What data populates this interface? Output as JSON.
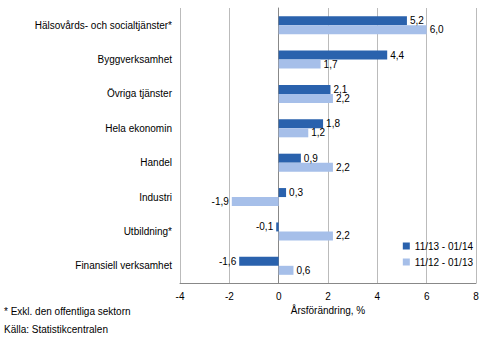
{
  "chart_data": {
    "type": "bar",
    "orientation": "horizontal",
    "categories": [
      "Hälsovårds- och socialtjänster*",
      "Byggverksamhet",
      "Övriga tjänster",
      "Hela ekonomin",
      "Handel",
      "Industri",
      "Utbildning*",
      "Finansiell verksamhet"
    ],
    "series": [
      {
        "name": "11/13 - 01/14",
        "color": "#2a62ad",
        "values": [
          5.2,
          4.4,
          2.1,
          1.8,
          0.9,
          0.3,
          -0.1,
          -1.6
        ],
        "value_labels": [
          "5,2",
          "4,4",
          "2,1",
          "1,8",
          "0,9",
          "0,3",
          "-0,1",
          "-1,6"
        ]
      },
      {
        "name": "11/12 - 01/13",
        "color": "#a6bfe9",
        "values": [
          6.0,
          1.7,
          2.2,
          1.2,
          2.2,
          -1.9,
          2.2,
          0.6
        ],
        "value_labels": [
          "6,0",
          "1,7",
          "2,2",
          "1,2",
          "2,2",
          "-1,9",
          "2,2",
          "0,6"
        ]
      }
    ],
    "x_label": "Årsförändring, %",
    "xlim": [
      -4,
      8
    ],
    "xticks": [
      -4,
      -2,
      0,
      2,
      4,
      6,
      8
    ],
    "grid": true,
    "data_labels": true,
    "legend": "lower right",
    "annotations": [
      "* Exkl. den offentliga sektorn",
      "Källa: Statistikcentralen"
    ]
  }
}
